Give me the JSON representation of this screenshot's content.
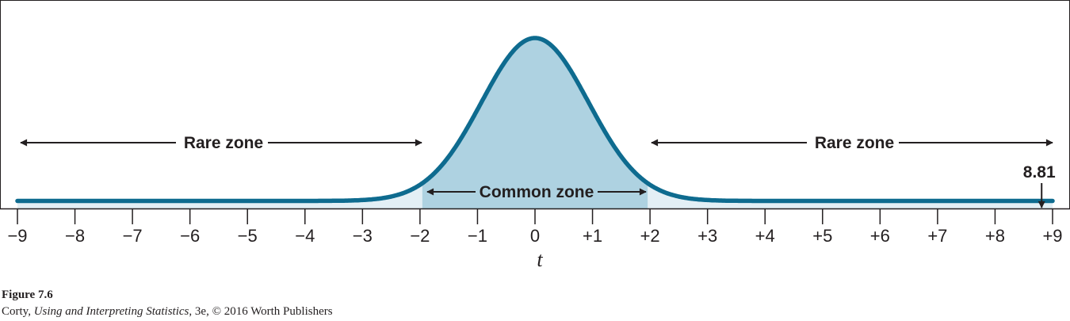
{
  "figure": {
    "caption_title": "Figure 7.6",
    "caption_author": "Corty, ",
    "caption_book": "Using and Interpreting Statistics",
    "caption_rest": ", 3e, © 2016 Worth Publishers"
  },
  "chart_data": {
    "type": "area",
    "curve": "t-distribution",
    "xlabel": "t",
    "xlim": [
      -9,
      9
    ],
    "tick_values": [
      -9,
      -8,
      -7,
      -6,
      -5,
      -4,
      -3,
      -2,
      -1,
      0,
      1,
      2,
      3,
      4,
      5,
      6,
      7,
      8,
      9
    ],
    "tick_labels": [
      "−9",
      "−8",
      "−7",
      "−6",
      "−5",
      "−4",
      "−3",
      "−2",
      "−1",
      "0",
      "+1",
      "+2",
      "+3",
      "+4",
      "+5",
      "+6",
      "+7",
      "+8",
      "+9"
    ],
    "common_zone": {
      "label": "Common zone",
      "from": -1.96,
      "to": 1.96
    },
    "rare_zones": [
      {
        "label": "Rare zone",
        "from": -9,
        "to": -1.96
      },
      {
        "label": "Rare zone",
        "from": 1.96,
        "to": 9
      }
    ],
    "marker": {
      "label": "8.81",
      "value": 8.81
    },
    "colors": {
      "curve": "#0e6b8f",
      "common_fill": "#aed2e1",
      "rare_fill": "#e3eff5",
      "text": "#231f20"
    }
  }
}
